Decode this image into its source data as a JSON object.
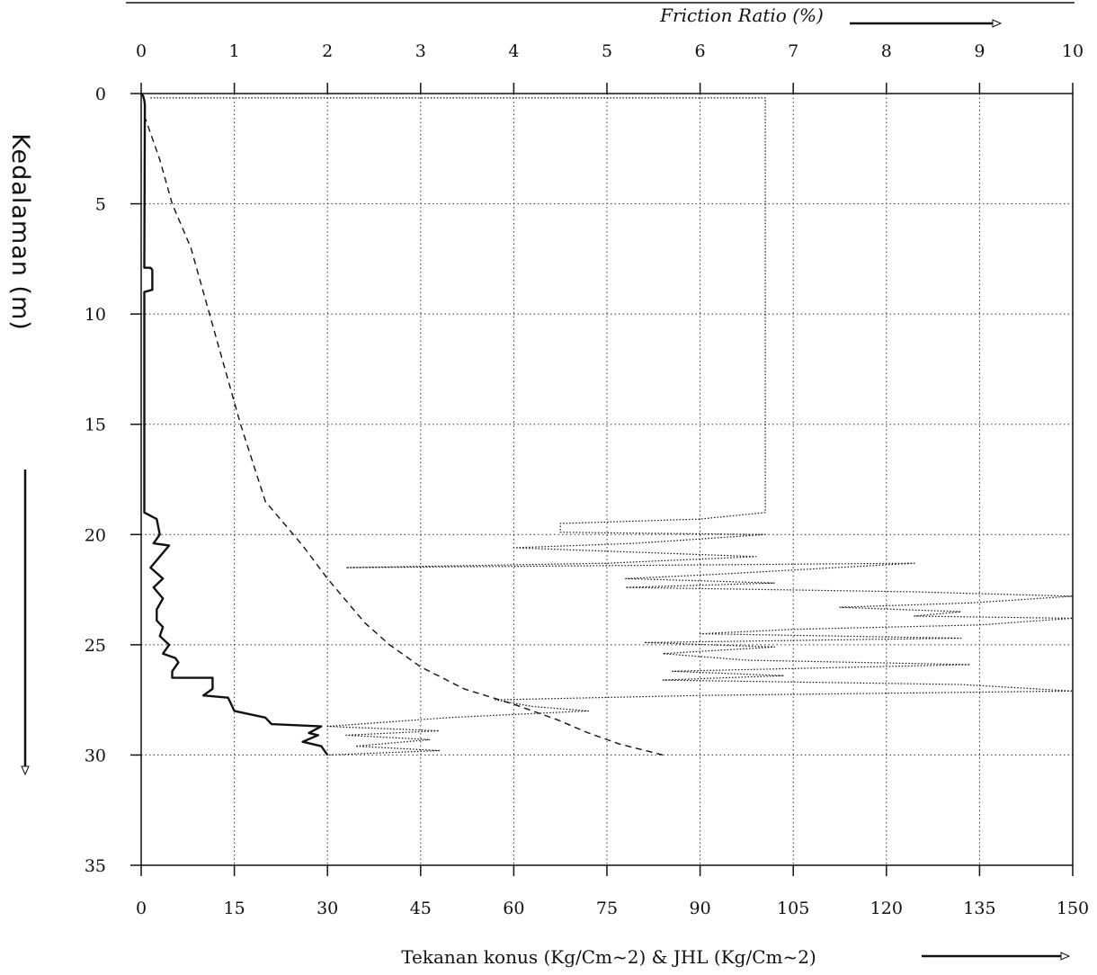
{
  "chart_data": {
    "type": "line",
    "top_axis": {
      "label": "Friction Ratio (%)",
      "ticks": [
        "0",
        "1",
        "2",
        "3",
        "4",
        "5",
        "6",
        "7",
        "8",
        "9",
        "10"
      ],
      "range": [
        0,
        10
      ]
    },
    "bottom_axis": {
      "label": "Tekanan konus (Kg/Cm~2) & JHL (Kg/Cm~2)",
      "ticks": [
        "0",
        "15",
        "30",
        "45",
        "60",
        "75",
        "90",
        "105",
        "120",
        "135",
        "150"
      ],
      "range": [
        0,
        150
      ]
    },
    "y_axis": {
      "label": "Kedalaman (m)",
      "ticks": [
        "0",
        "5",
        "10",
        "15",
        "20",
        "25",
        "30",
        "35"
      ],
      "range": [
        0,
        35
      ],
      "inverted": true
    },
    "grid": true,
    "series": [
      {
        "style": "solid",
        "axis": "bottom",
        "points": [
          [
            0,
            0
          ],
          [
            0.3,
            0.1
          ],
          [
            0.5,
            0.3
          ],
          [
            0.6,
            0.5
          ],
          [
            0.5,
            7.9
          ],
          [
            1.5,
            7.9
          ],
          [
            1.8,
            8.0
          ],
          [
            1.8,
            8.9
          ],
          [
            0.5,
            9.0
          ],
          [
            0.5,
            19.0
          ],
          [
            2.5,
            19.3
          ],
          [
            3.0,
            20.0
          ],
          [
            2.0,
            20.4
          ],
          [
            4.5,
            20.5
          ],
          [
            3.0,
            21.0
          ],
          [
            1.5,
            21.5
          ],
          [
            3.5,
            22.0
          ],
          [
            2.0,
            22.4
          ],
          [
            3.5,
            22.9
          ],
          [
            2.5,
            23.4
          ],
          [
            2.5,
            23.9
          ],
          [
            3.5,
            24.2
          ],
          [
            3.0,
            24.6
          ],
          [
            4.5,
            25.0
          ],
          [
            3.5,
            25.4
          ],
          [
            5.5,
            25.6
          ],
          [
            6.0,
            25.8
          ],
          [
            5.0,
            26.2
          ],
          [
            5.0,
            26.5
          ],
          [
            11.5,
            26.5
          ],
          [
            11.5,
            27.0
          ],
          [
            10.0,
            27.3
          ],
          [
            14.0,
            27.4
          ],
          [
            15.0,
            28.0
          ],
          [
            20.0,
            28.3
          ],
          [
            21.0,
            28.6
          ],
          [
            29.0,
            28.7
          ],
          [
            27.0,
            29.0
          ],
          [
            28.5,
            29.1
          ],
          [
            26.0,
            29.4
          ],
          [
            29.0,
            29.6
          ],
          [
            30.0,
            30.0
          ]
        ]
      },
      {
        "style": "dashed",
        "axis": "bottom",
        "points": [
          [
            0.5,
            1.0
          ],
          [
            3.0,
            3.0
          ],
          [
            5.0,
            5.0
          ],
          [
            8.0,
            7.0
          ],
          [
            10.0,
            9.0
          ],
          [
            13.0,
            12.0
          ],
          [
            16.0,
            15.0
          ],
          [
            20.0,
            18.5
          ],
          [
            26.0,
            20.5
          ],
          [
            30.0,
            22.0
          ],
          [
            33.0,
            23.0
          ],
          [
            36.0,
            24.0
          ],
          [
            40.0,
            25.0
          ],
          [
            45.0,
            26.0
          ],
          [
            52.0,
            27.0
          ],
          [
            60.0,
            27.7
          ],
          [
            67.0,
            28.4
          ],
          [
            72.0,
            29.0
          ],
          [
            77.0,
            29.5
          ],
          [
            84.0,
            30.0
          ]
        ]
      },
      {
        "style": "dotted",
        "axis": "top",
        "points": [
          [
            0.1,
            0.2
          ],
          [
            6.7,
            0.2
          ],
          [
            6.7,
            19.0
          ],
          [
            6.0,
            19.3
          ],
          [
            4.5,
            19.5
          ],
          [
            4.5,
            19.9
          ],
          [
            6.7,
            20.0
          ],
          [
            5.3,
            20.4
          ],
          [
            4.0,
            20.6
          ],
          [
            5.3,
            20.8
          ],
          [
            6.6,
            21.0
          ],
          [
            5.0,
            21.3
          ],
          [
            2.2,
            21.5
          ],
          [
            8.3,
            21.3
          ],
          [
            6.2,
            21.8
          ],
          [
            5.2,
            22.0
          ],
          [
            6.8,
            22.2
          ],
          [
            5.2,
            22.4
          ],
          [
            8.3,
            22.6
          ],
          [
            10.0,
            22.8
          ],
          [
            8.9,
            23.1
          ],
          [
            7.5,
            23.3
          ],
          [
            8.8,
            23.5
          ],
          [
            8.3,
            23.7
          ],
          [
            10.0,
            23.8
          ],
          [
            9.0,
            24.1
          ],
          [
            7.0,
            24.3
          ],
          [
            6.0,
            24.5
          ],
          [
            8.8,
            24.7
          ],
          [
            5.4,
            24.9
          ],
          [
            6.8,
            25.1
          ],
          [
            5.6,
            25.4
          ],
          [
            6.5,
            25.7
          ],
          [
            8.9,
            25.9
          ],
          [
            5.7,
            26.2
          ],
          [
            6.9,
            26.4
          ],
          [
            5.6,
            26.6
          ],
          [
            8.8,
            26.8
          ],
          [
            10.0,
            27.1
          ],
          [
            6.0,
            27.3
          ],
          [
            3.8,
            27.5
          ],
          [
            4.2,
            27.8
          ],
          [
            4.8,
            28.0
          ],
          [
            3.3,
            28.3
          ],
          [
            2.0,
            28.7
          ],
          [
            3.2,
            28.9
          ],
          [
            2.2,
            29.1
          ],
          [
            3.1,
            29.3
          ],
          [
            2.3,
            29.6
          ],
          [
            3.2,
            29.8
          ],
          [
            2.0,
            30.0
          ]
        ]
      }
    ]
  }
}
